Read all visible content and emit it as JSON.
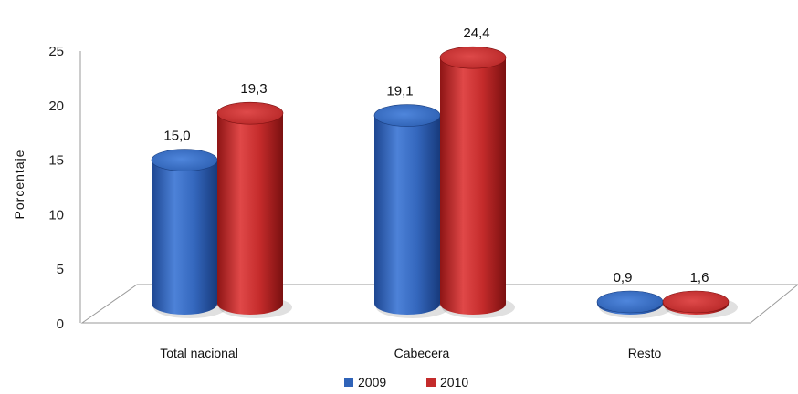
{
  "chart_data": {
    "type": "bar",
    "style": "3d-cylinder",
    "categories": [
      "Total nacional",
      "Cabecera",
      "Resto"
    ],
    "series": [
      {
        "name": "2009",
        "color": "#2f63b8",
        "values": [
          15.0,
          19.1,
          0.9
        ],
        "labels": [
          "15,0",
          "19,1",
          "0,9"
        ]
      },
      {
        "name": "2010",
        "color": "#c42b2b",
        "values": [
          19.3,
          24.4,
          1.6
        ],
        "labels": [
          "19,3",
          "24,4",
          "1,6"
        ]
      }
    ],
    "ylabel": "Porcentaje",
    "ylim": [
      0,
      25
    ],
    "yticks": [
      "0",
      "5",
      "10",
      "15",
      "20",
      "25"
    ],
    "grid": false,
    "legend_position": "bottom"
  }
}
